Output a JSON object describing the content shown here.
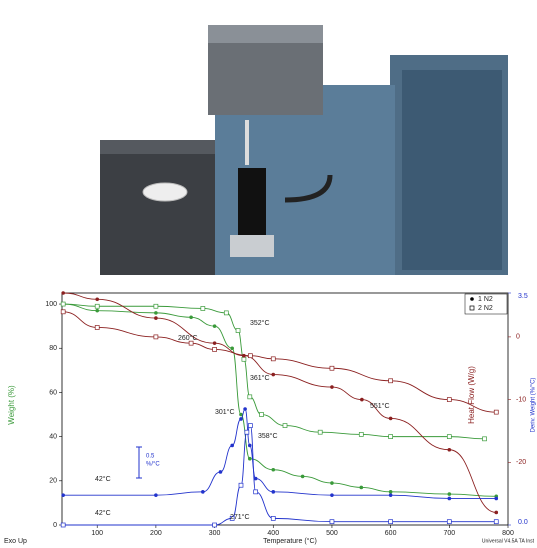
{
  "chart_data": {
    "type": "line",
    "x_label": "Temperature (°C)",
    "y_label": "Weight (%)",
    "y2_label": "Heat Flow (W/g)",
    "y3_label": "Deriv. Weight (%/°C)",
    "xlim": [
      40,
      800
    ],
    "xticks": [
      100,
      200,
      300,
      400,
      500,
      600,
      700,
      800
    ],
    "ylim": [
      0,
      105
    ],
    "yticks": [
      0,
      20,
      40,
      60,
      80,
      100
    ],
    "y2lim": [
      -30,
      7
    ],
    "y2ticks": [
      0,
      -10,
      -20
    ],
    "y3lim": [
      0,
      3.5
    ],
    "y3ticks": [
      {
        "value": 0,
        "label": "0.0"
      },
      3.5
    ],
    "legend": [
      {
        "name": "1 N2",
        "marker": "circle"
      },
      {
        "name": "2 N2",
        "marker": "square"
      }
    ],
    "series": [
      {
        "run": 0,
        "axis": "y",
        "color": "#3a9a3a",
        "x": [
          42,
          100,
          200,
          260,
          300,
          330,
          345,
          360,
          400,
          450,
          500,
          550,
          600,
          700,
          780
        ],
        "values": [
          100,
          97,
          96,
          94,
          90,
          80,
          50,
          30,
          25,
          22,
          19,
          17,
          15,
          14,
          13
        ]
      },
      {
        "run": 1,
        "axis": "y",
        "color": "#3a9a3a",
        "x": [
          42,
          100,
          200,
          280,
          320,
          340,
          350,
          360,
          380,
          420,
          480,
          550,
          600,
          700,
          760
        ],
        "values": [
          100,
          99,
          99,
          98,
          96,
          88,
          75,
          58,
          50,
          45,
          42,
          41,
          40,
          40,
          39
        ]
      },
      {
        "run": 0,
        "axis": "y2",
        "color": "#8b2020",
        "x": [
          42,
          100,
          200,
          300,
          350,
          400,
          500,
          551,
          600,
          700,
          780
        ],
        "values": [
          7,
          6,
          3,
          -1,
          -3,
          -6,
          -8,
          -10,
          -13,
          -18,
          -28
        ]
      },
      {
        "run": 1,
        "axis": "y2",
        "color": "#8b2020",
        "x": [
          42,
          100,
          200,
          260,
          300,
          361,
          400,
          500,
          600,
          700,
          780
        ],
        "values": [
          4,
          1.5,
          0,
          -1,
          -2,
          -3,
          -3.5,
          -5,
          -7,
          -10,
          -12
        ]
      },
      {
        "run": 0,
        "axis": "y3",
        "color": "#2233cc",
        "x": [
          42,
          200,
          280,
          310,
          330,
          345,
          352,
          360,
          370,
          400,
          500,
          600,
          700,
          780
        ],
        "values": [
          0.45,
          0.45,
          0.5,
          0.8,
          1.2,
          1.6,
          1.75,
          1.2,
          0.7,
          0.5,
          0.45,
          0.45,
          0.4,
          0.4
        ]
      },
      {
        "run": 1,
        "axis": "y3",
        "color": "#2233cc",
        "x": [
          42,
          300,
          330,
          345,
          355,
          361,
          370,
          400,
          500,
          600,
          700,
          780
        ],
        "values": [
          0,
          0,
          0.1,
          0.6,
          1.4,
          1.5,
          0.5,
          0.1,
          0.05,
          0.05,
          0.05,
          0.05
        ]
      }
    ],
    "annotations": [
      "260°C",
      "352°C",
      "301°C",
      "361°C",
      "358°C",
      "551°C",
      "42°C",
      "42°C",
      "271°C"
    ],
    "scale_bar": [
      "0.5",
      "%/°C"
    ],
    "footer_left": "Exo Up",
    "footer_right": "Universal V4.5A TA Inst"
  }
}
